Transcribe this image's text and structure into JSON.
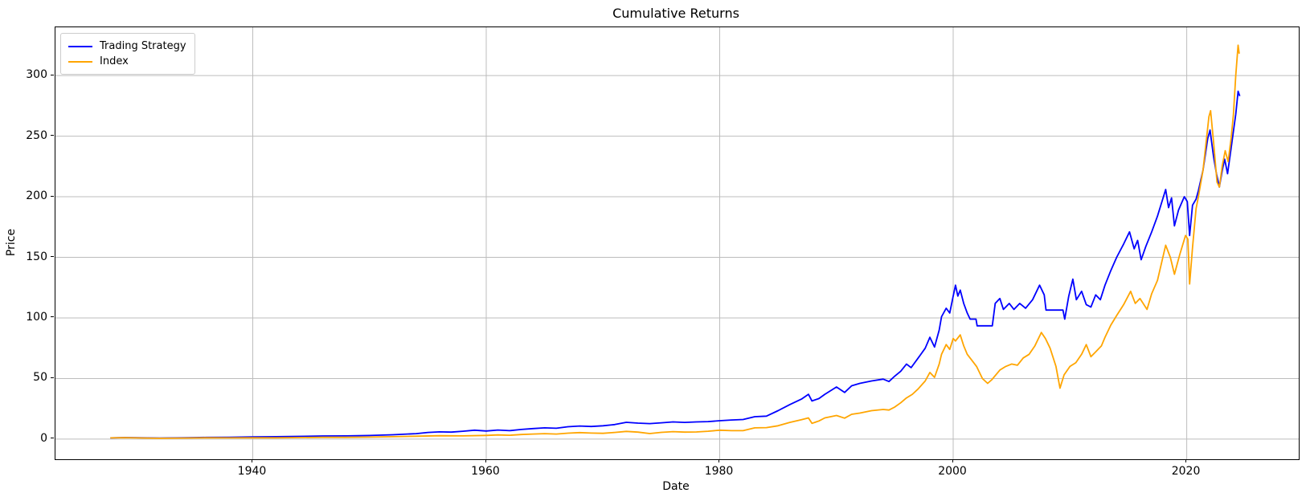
{
  "figure": {
    "title": "Cumulative Returns",
    "xlabel": "Date",
    "ylabel": "Price"
  },
  "chart_data": {
    "type": "line",
    "title": "Cumulative Returns",
    "xlabel": "Date",
    "ylabel": "Price",
    "grid": true,
    "grid_color": "#bdbdbd",
    "spine_color": "#000000",
    "background": "#ffffff",
    "legend_position": "upper-left",
    "xlim": [
      1923.1,
      2029.6
    ],
    "ylim": [
      -16.6,
      339.8
    ],
    "x_ticks": [
      {
        "value": 1940,
        "label": "1940"
      },
      {
        "value": 1960,
        "label": "1960"
      },
      {
        "value": 1980,
        "label": "1980"
      },
      {
        "value": 2000,
        "label": "2000"
      },
      {
        "value": 2020,
        "label": "2020"
      }
    ],
    "y_ticks": [
      {
        "value": 0,
        "label": "0"
      },
      {
        "value": 50,
        "label": "50"
      },
      {
        "value": 100,
        "label": "100"
      },
      {
        "value": 150,
        "label": "150"
      },
      {
        "value": 200,
        "label": "200"
      },
      {
        "value": 250,
        "label": "250"
      },
      {
        "value": 300,
        "label": "300"
      }
    ],
    "series": [
      {
        "name": "Trading Strategy",
        "color": "#0000ff",
        "line_width": 1.8,
        "points": [
          [
            1927.8,
            1.0
          ],
          [
            1929,
            1.3
          ],
          [
            1930,
            1.2
          ],
          [
            1932,
            0.9
          ],
          [
            1934,
            1.1
          ],
          [
            1936,
            1.4
          ],
          [
            1938,
            1.5
          ],
          [
            1940,
            1.9
          ],
          [
            1942,
            2.0
          ],
          [
            1944,
            2.3
          ],
          [
            1946,
            2.6
          ],
          [
            1948,
            2.7
          ],
          [
            1950,
            3.0
          ],
          [
            1952,
            3.6
          ],
          [
            1954,
            4.5
          ],
          [
            1955,
            5.5
          ],
          [
            1956,
            6.0
          ],
          [
            1957,
            5.8
          ],
          [
            1958,
            6.5
          ],
          [
            1959,
            7.4
          ],
          [
            1960,
            6.7
          ],
          [
            1961,
            7.5
          ],
          [
            1962,
            7.0
          ],
          [
            1963,
            8.0
          ],
          [
            1964,
            8.7
          ],
          [
            1965,
            9.3
          ],
          [
            1966,
            9.0
          ],
          [
            1967,
            10.2
          ],
          [
            1968,
            10.8
          ],
          [
            1969,
            10.4
          ],
          [
            1970,
            11.0
          ],
          [
            1971,
            12.0
          ],
          [
            1972,
            13.9
          ],
          [
            1973,
            13.2
          ],
          [
            1974,
            12.8
          ],
          [
            1975,
            13.5
          ],
          [
            1976,
            14.2
          ],
          [
            1977,
            13.8
          ],
          [
            1978,
            14.2
          ],
          [
            1979,
            14.5
          ],
          [
            1980,
            15.2
          ],
          [
            1981,
            15.8
          ],
          [
            1982,
            16.2
          ],
          [
            1983,
            18.5
          ],
          [
            1984,
            19.0
          ],
          [
            1985,
            23.5
          ],
          [
            1986,
            28.5
          ],
          [
            1987,
            33.0
          ],
          [
            1987.6,
            37.0
          ],
          [
            1987.9,
            31.5
          ],
          [
            1988.5,
            33.5
          ],
          [
            1989,
            37.0
          ],
          [
            1990,
            43.0
          ],
          [
            1990.7,
            38.5
          ],
          [
            1991.3,
            44.0
          ],
          [
            1992,
            46.0
          ],
          [
            1993,
            48.0
          ],
          [
            1994,
            49.5
          ],
          [
            1994.5,
            47.5
          ],
          [
            1995,
            52.0
          ],
          [
            1995.5,
            56.0
          ],
          [
            1996,
            62.0
          ],
          [
            1996.4,
            59.0
          ],
          [
            1997,
            67.0
          ],
          [
            1997.6,
            75.0
          ],
          [
            1998,
            84.0
          ],
          [
            1998.4,
            76.0
          ],
          [
            1998.8,
            90.0
          ],
          [
            1999,
            101.0
          ],
          [
            1999.4,
            108.0
          ],
          [
            1999.7,
            104.0
          ],
          [
            2000,
            118.0
          ],
          [
            2000.2,
            127.0
          ],
          [
            2000.4,
            118.0
          ],
          [
            2000.6,
            123.0
          ],
          [
            2000.9,
            112.0
          ],
          [
            2001.2,
            104.0
          ],
          [
            2001.45,
            99.0
          ],
          [
            2001.95,
            99.0
          ],
          [
            2002.05,
            93.5
          ],
          [
            2003.35,
            93.5
          ],
          [
            2003.6,
            112.0
          ],
          [
            2004,
            116.0
          ],
          [
            2004.3,
            107.0
          ],
          [
            2004.8,
            112.0
          ],
          [
            2005.2,
            107.0
          ],
          [
            2005.7,
            112.0
          ],
          [
            2006.2,
            108.0
          ],
          [
            2006.8,
            115.0
          ],
          [
            2007.4,
            127.0
          ],
          [
            2007.8,
            119.0
          ],
          [
            2007.95,
            106.5
          ],
          [
            2009.4,
            106.5
          ],
          [
            2009.55,
            99.0
          ],
          [
            2009.9,
            118.0
          ],
          [
            2010.25,
            132.0
          ],
          [
            2010.55,
            115.0
          ],
          [
            2011,
            122.0
          ],
          [
            2011.4,
            111.0
          ],
          [
            2011.8,
            109.0
          ],
          [
            2012.2,
            119.0
          ],
          [
            2012.6,
            115.0
          ],
          [
            2013,
            127.0
          ],
          [
            2013.5,
            139.0
          ],
          [
            2014,
            150.0
          ],
          [
            2014.6,
            161.0
          ],
          [
            2015.1,
            171.0
          ],
          [
            2015.5,
            157.0
          ],
          [
            2015.8,
            164.0
          ],
          [
            2016.1,
            148.0
          ],
          [
            2016.5,
            159.0
          ],
          [
            2017,
            171.0
          ],
          [
            2017.5,
            184.0
          ],
          [
            2018.2,
            206.0
          ],
          [
            2018.45,
            191.0
          ],
          [
            2018.7,
            199.0
          ],
          [
            2018.95,
            176.0
          ],
          [
            2019.3,
            189.0
          ],
          [
            2019.8,
            200.0
          ],
          [
            2020.05,
            196.0
          ],
          [
            2020.25,
            168.0
          ],
          [
            2020.5,
            193.0
          ],
          [
            2020.8,
            198.0
          ],
          [
            2021,
            205.0
          ],
          [
            2021.4,
            222.0
          ],
          [
            2021.8,
            248.0
          ],
          [
            2022,
            255.0
          ],
          [
            2022.3,
            233.0
          ],
          [
            2022.55,
            219.0
          ],
          [
            2022.8,
            208.0
          ],
          [
            2023.05,
            222.0
          ],
          [
            2023.25,
            231.0
          ],
          [
            2023.5,
            219.0
          ],
          [
            2023.8,
            240.0
          ],
          [
            2024,
            254.0
          ],
          [
            2024.2,
            268.0
          ],
          [
            2024.4,
            287.0
          ],
          [
            2024.55,
            283.0
          ]
        ]
      },
      {
        "name": "Index",
        "color": "#ffa500",
        "line_width": 1.8,
        "points": [
          [
            1927.8,
            1.0
          ],
          [
            1929,
            1.2
          ],
          [
            1930,
            1.0
          ],
          [
            1932,
            0.7
          ],
          [
            1934,
            0.9
          ],
          [
            1936,
            1.1
          ],
          [
            1938,
            1.0
          ],
          [
            1940,
            1.1
          ],
          [
            1942,
            1.1
          ],
          [
            1944,
            1.3
          ],
          [
            1946,
            1.5
          ],
          [
            1948,
            1.5
          ],
          [
            1950,
            1.7
          ],
          [
            1952,
            2.0
          ],
          [
            1954,
            2.4
          ],
          [
            1956,
            2.8
          ],
          [
            1958,
            2.7
          ],
          [
            1960,
            3.1
          ],
          [
            1961,
            3.5
          ],
          [
            1962,
            3.2
          ],
          [
            1963,
            3.8
          ],
          [
            1964,
            4.2
          ],
          [
            1965,
            4.5
          ],
          [
            1966,
            4.2
          ],
          [
            1967,
            4.9
          ],
          [
            1968,
            5.4
          ],
          [
            1969,
            5.0
          ],
          [
            1970,
            4.8
          ],
          [
            1971,
            5.5
          ],
          [
            1972,
            6.4
          ],
          [
            1973,
            5.8
          ],
          [
            1974,
            4.6
          ],
          [
            1975,
            5.6
          ],
          [
            1976,
            6.2
          ],
          [
            1977,
            5.8
          ],
          [
            1978,
            5.9
          ],
          [
            1979,
            6.5
          ],
          [
            1980,
            7.4
          ],
          [
            1981,
            7.0
          ],
          [
            1982,
            7.0
          ],
          [
            1983,
            9.3
          ],
          [
            1984,
            9.5
          ],
          [
            1985,
            11.0
          ],
          [
            1986,
            13.8
          ],
          [
            1987,
            16.0
          ],
          [
            1987.6,
            17.5
          ],
          [
            1987.9,
            13.0
          ],
          [
            1988.5,
            15.0
          ],
          [
            1989,
            17.5
          ],
          [
            1990,
            19.5
          ],
          [
            1990.7,
            17.3
          ],
          [
            1991.3,
            20.5
          ],
          [
            1992,
            21.5
          ],
          [
            1993,
            23.5
          ],
          [
            1994,
            24.5
          ],
          [
            1994.5,
            24.0
          ],
          [
            1995,
            26.5
          ],
          [
            1995.5,
            30.0
          ],
          [
            1996,
            34.0
          ],
          [
            1996.5,
            37.0
          ],
          [
            1997,
            41.5
          ],
          [
            1997.6,
            48.0
          ],
          [
            1998,
            55.0
          ],
          [
            1998.4,
            51.0
          ],
          [
            1998.8,
            62.0
          ],
          [
            1999,
            70.0
          ],
          [
            1999.4,
            78.0
          ],
          [
            1999.7,
            74.0
          ],
          [
            2000,
            83.0
          ],
          [
            2000.2,
            81.0
          ],
          [
            2000.6,
            86.0
          ],
          [
            2000.9,
            77.0
          ],
          [
            2001.2,
            70.0
          ],
          [
            2001.6,
            65.0
          ],
          [
            2002,
            60.0
          ],
          [
            2002.5,
            50.0
          ],
          [
            2002.95,
            46.0
          ],
          [
            2003.3,
            49.0
          ],
          [
            2004,
            57.0
          ],
          [
            2004.5,
            60.0
          ],
          [
            2005,
            62.0
          ],
          [
            2005.5,
            61.0
          ],
          [
            2006,
            67.0
          ],
          [
            2006.5,
            70.0
          ],
          [
            2007,
            77.0
          ],
          [
            2007.55,
            88.0
          ],
          [
            2007.9,
            83.0
          ],
          [
            2008.3,
            75.0
          ],
          [
            2008.8,
            60.0
          ],
          [
            2009.15,
            42.0
          ],
          [
            2009.5,
            53.0
          ],
          [
            2010,
            60.0
          ],
          [
            2010.5,
            63.0
          ],
          [
            2011,
            70.0
          ],
          [
            2011.4,
            78.0
          ],
          [
            2011.8,
            68.0
          ],
          [
            2012.2,
            72.0
          ],
          [
            2012.7,
            77.0
          ],
          [
            2013,
            84.0
          ],
          [
            2013.5,
            94.0
          ],
          [
            2014,
            102.0
          ],
          [
            2014.6,
            111.0
          ],
          [
            2015.2,
            122.0
          ],
          [
            2015.6,
            112.0
          ],
          [
            2016,
            116.0
          ],
          [
            2016.6,
            107.0
          ],
          [
            2017,
            120.0
          ],
          [
            2017.5,
            131.0
          ],
          [
            2018.2,
            160.0
          ],
          [
            2018.6,
            150.0
          ],
          [
            2018.95,
            136.0
          ],
          [
            2019.4,
            152.0
          ],
          [
            2019.9,
            168.0
          ],
          [
            2020.1,
            165.0
          ],
          [
            2020.25,
            128.0
          ],
          [
            2020.5,
            158.0
          ],
          [
            2020.8,
            190.0
          ],
          [
            2021,
            200.0
          ],
          [
            2021.4,
            222.0
          ],
          [
            2021.9,
            266.0
          ],
          [
            2022.05,
            271.0
          ],
          [
            2022.3,
            245.0
          ],
          [
            2022.6,
            212.0
          ],
          [
            2022.8,
            208.0
          ],
          [
            2023.05,
            226.0
          ],
          [
            2023.3,
            238.0
          ],
          [
            2023.55,
            229.0
          ],
          [
            2023.8,
            248.0
          ],
          [
            2024,
            268.0
          ],
          [
            2024.2,
            300.0
          ],
          [
            2024.4,
            325.0
          ],
          [
            2024.5,
            318.0
          ]
        ]
      }
    ]
  }
}
